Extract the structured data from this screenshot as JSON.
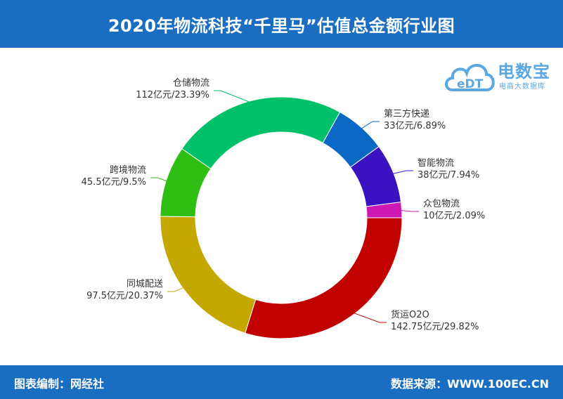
{
  "header": {
    "title": "2020年物流科技“千里马”估值总金额行业图"
  },
  "footer": {
    "left": "图表编制：网经社",
    "right": "数据来源：WWW.100EC.CN"
  },
  "logo": {
    "brand": "电数宝",
    "sub": "电商大数据库",
    "mark": "eDT",
    "color": "#5aa7e2"
  },
  "colors": {
    "header_bg": "#1a6ec1"
  },
  "chart_data": {
    "type": "pie",
    "variant": "donut",
    "unit": "亿元",
    "slices": [
      {
        "name": "众包物流",
        "value": 10,
        "percent": "2.09%",
        "label_value": "10亿元/2.09%",
        "color": "#cc19b4"
      },
      {
        "name": "货运O2O",
        "value": 142.75,
        "percent": "29.82%",
        "label_value": "142.75亿元/29.82%",
        "color": "#c10000"
      },
      {
        "name": "同城配送",
        "value": 97.5,
        "percent": "20.37%",
        "label_value": "97.5亿元/20.37%",
        "color": "#c4a800"
      },
      {
        "name": "跨境物流",
        "value": 45.5,
        "percent": "9.5%",
        "label_value": "45.5亿元/9.5%",
        "color": "#2fbf14"
      },
      {
        "name": "仓储物流",
        "value": 112,
        "percent": "23.39%",
        "label_value": "112亿元/23.39%",
        "color": "#00c06a"
      },
      {
        "name": "第三方快递",
        "value": 33,
        "percent": "6.89%",
        "label_value": "33亿元/6.89%",
        "color": "#0a67c4"
      },
      {
        "name": "智能物流",
        "value": 38,
        "percent": "7.94%",
        "label_value": "38亿元/7.94%",
        "color": "#3a12c2"
      }
    ]
  }
}
